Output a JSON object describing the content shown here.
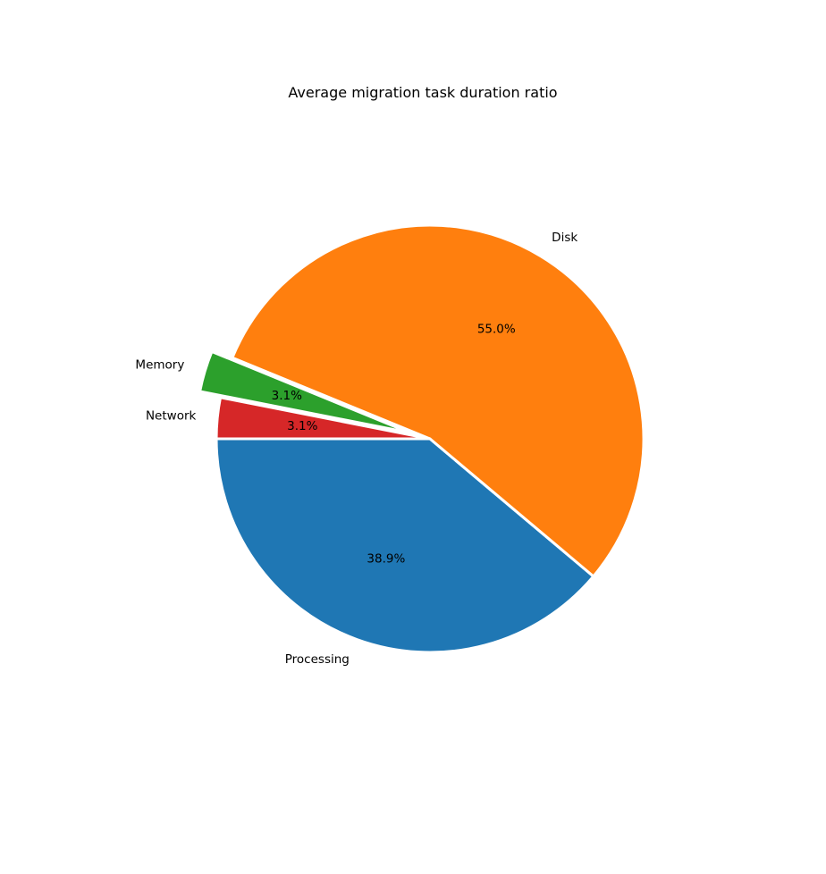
{
  "chart_data": {
    "type": "pie",
    "title": "Average migration task duration ratio",
    "slices": [
      {
        "label": "Processing",
        "value": 38.9,
        "pct_text": "38.9%",
        "color": "#1f77b4",
        "explode": false
      },
      {
        "label": "Disk",
        "value": 55.0,
        "pct_text": "55.0%",
        "color": "#ff7f0e",
        "explode": false
      },
      {
        "label": "Memory",
        "value": 3.1,
        "pct_text": "3.1%",
        "color": "#2ca02c",
        "explode": true
      },
      {
        "label": "Network",
        "value": 3.1,
        "pct_text": "3.1%",
        "color": "#d62728",
        "explode": false
      }
    ],
    "start_angle": "left (180°)",
    "direction": "counterclockwise",
    "edge_color": "#ffffff",
    "legend": "none"
  }
}
